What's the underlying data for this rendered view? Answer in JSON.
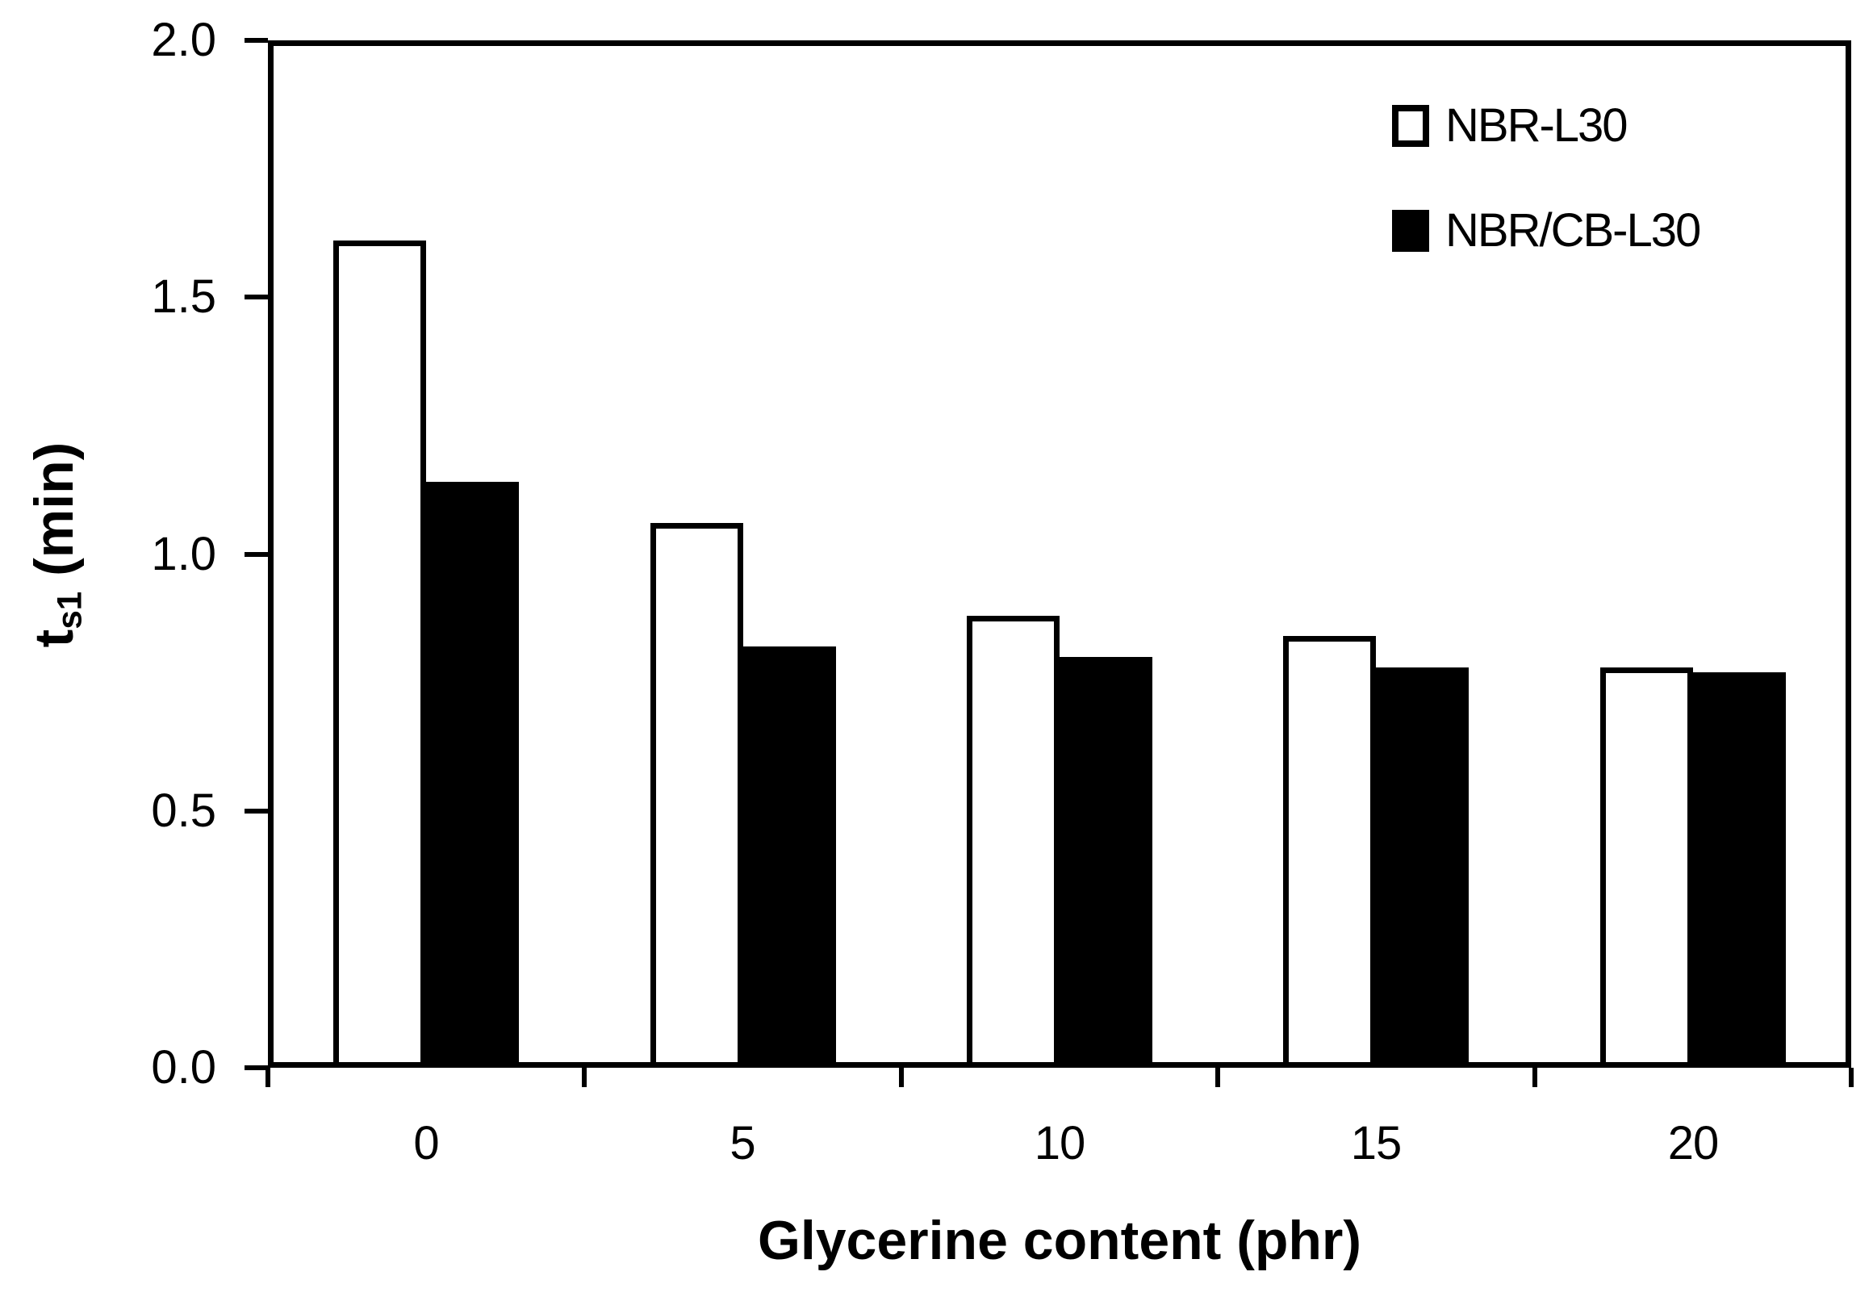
{
  "figure": {
    "background": "#ffffff",
    "axis_color": "#000000"
  },
  "chart_data": {
    "type": "bar",
    "title": "",
    "categories": [
      "0",
      "5",
      "10",
      "15",
      "20"
    ],
    "series": [
      {
        "name": "NBR-L30",
        "fill": "#ffffff",
        "border": "#000000",
        "values": [
          1.61,
          1.06,
          0.88,
          0.84,
          0.78
        ]
      },
      {
        "name": "NBR/CB-L30",
        "fill": "#000000",
        "border": "#000000",
        "values": [
          1.14,
          0.82,
          0.8,
          0.78,
          0.77
        ]
      }
    ],
    "xlabel": "Glycerine content (phr)",
    "ylabel": "ts1 (min)",
    "ylabel_parts": {
      "main": "t",
      "sub": "s1",
      "unit": " (min)"
    },
    "ylim": [
      0.0,
      2.0
    ],
    "ytick_labels": [
      "0.0",
      "0.5",
      "1.0",
      "1.5",
      "2.0"
    ],
    "ytick_step": 0.5,
    "grid": false,
    "legend_position": "top-right"
  }
}
